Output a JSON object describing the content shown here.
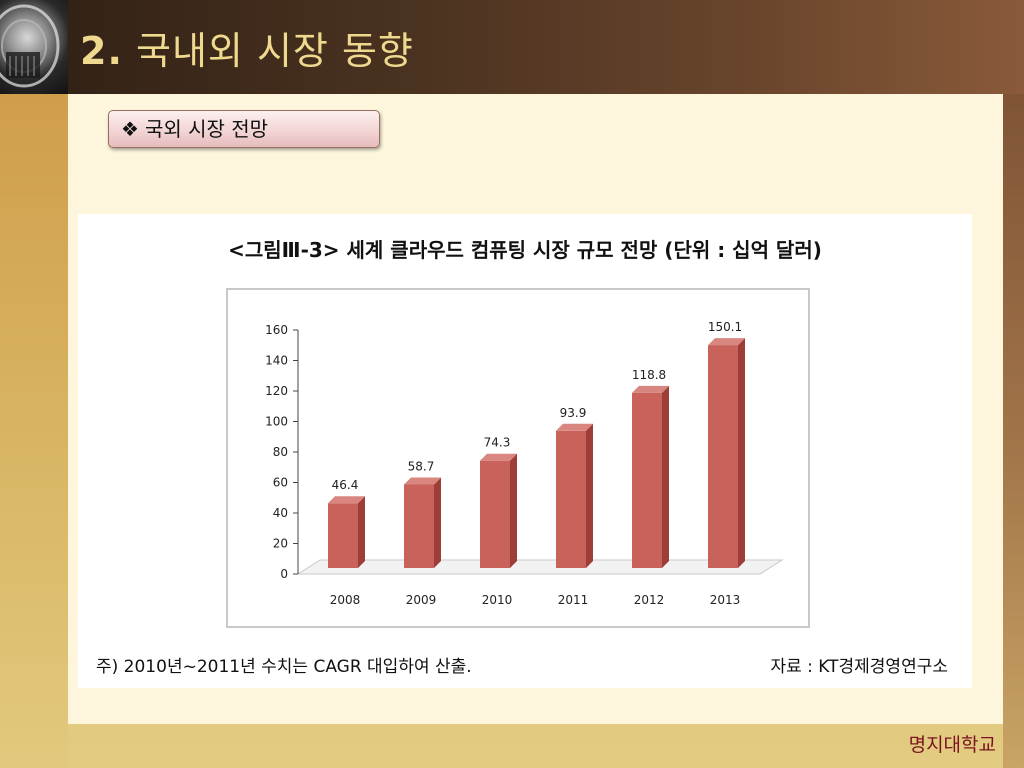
{
  "slide": {
    "title_number": "2.",
    "title_text": "국내외 시장 동향",
    "bullet_symbol": "❖",
    "bullet_text": "국외 시장 전망",
    "figure_title": "<그림Ⅲ-3> 세계 클라우드 컴퓨팅 시장 규모 전망 (단위 : 십억 달러)",
    "note": "주) 2010년~2011년 수치는 CAGR 대입하여 산출.",
    "source": "자료 : KT경제경영연구소",
    "footer": "명지대학교"
  },
  "colors": {
    "bar_front": "#c8625b",
    "bar_side": "#9e3e38",
    "bar_top": "#d98680",
    "title_text": "#efd98f",
    "footer_text": "#7a1420"
  },
  "chart_data": {
    "type": "bar",
    "title": "<그림Ⅲ-3> 세계 클라우드 컴퓨팅 시장 규모 전망 (단위 : 십억 달러)",
    "categories": [
      "2008",
      "2009",
      "2010",
      "2011",
      "2012",
      "2013"
    ],
    "values": [
      46.4,
      58.7,
      74.3,
      93.9,
      118.8,
      150.1
    ],
    "value_labels": [
      "46.4",
      "58.7",
      "74.3",
      "93.9",
      "118.8",
      "150.1"
    ],
    "yticks": [
      "0",
      "20",
      "40",
      "60",
      "80",
      "100",
      "120",
      "140",
      "160"
    ],
    "ylim": [
      0,
      160
    ],
    "xlabel": "",
    "ylabel": "",
    "grid": false,
    "legend": "none",
    "style": "3d-column"
  }
}
